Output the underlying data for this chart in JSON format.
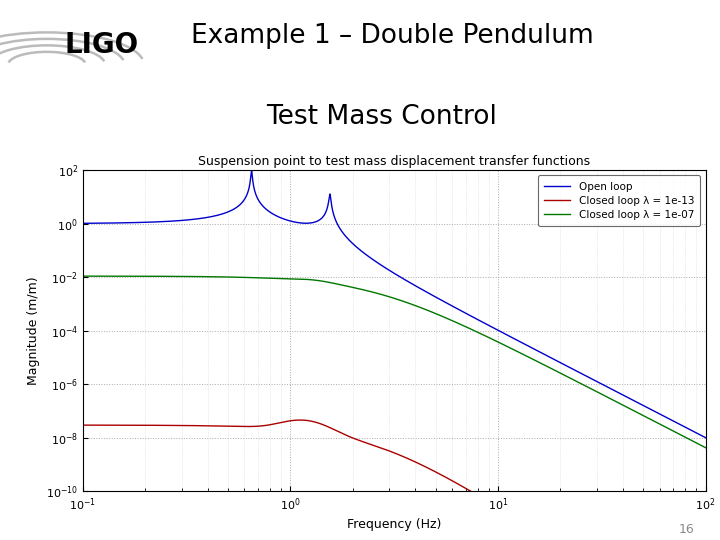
{
  "title_line1": "Example 1 – Double Pendulum",
  "title_line2": "Test Mass Control",
  "plot_title": "Suspension point to test mass displacement transfer functions",
  "xlabel": "Frequency (Hz)",
  "ylabel": "Magnitude (m/m)",
  "legend_labels": [
    "Open loop",
    "Closed loop λ = 1e-13",
    "Closed loop λ = 1e-07"
  ],
  "line_colors": [
    "#0000cc",
    "#aa0000",
    "#007700"
  ],
  "slide_bg": "#ffffff",
  "header_line_color": "#cc1177",
  "slide_number": "16",
  "open_loop_dc": 1.0,
  "open_loop_res1_freq": 0.65,
  "open_loop_res1_Q": 80,
  "open_loop_res2_freq": 1.55,
  "open_loop_res2_Q": 60,
  "cl_small_base": 3e-08,
  "cl_small_bump_freq": 1.2,
  "cl_small_rolloff_freq": 2.5,
  "cl_large_base": 0.011,
  "cl_large_bump_freq": 1.3,
  "cl_large_rolloff_freq": 2.5
}
